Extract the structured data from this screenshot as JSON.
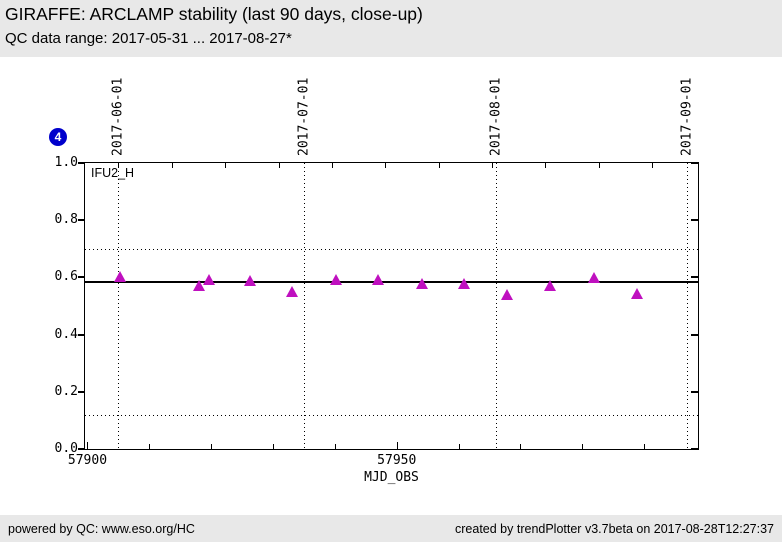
{
  "header": {
    "title": "GIRAFFE: ARCLAMP stability (last 90 days, close-up)",
    "subtitle": "QC data range: 2017-05-31 ... 2017-08-27*"
  },
  "badge": {
    "value": "4",
    "color": "#0000cc"
  },
  "footer": {
    "left": "powered by QC: www.eso.org/HC",
    "right": "created by trendPlotter v3.7beta on 2017-08-28T12:27:37"
  },
  "chart_data": {
    "type": "scatter",
    "series_label": "IFU2_H",
    "marker": "filled-triangle-up",
    "marker_color": "#bf10bf",
    "xlabel": "MJD_OBS",
    "xlim": [
      57899.6,
      57998.7
    ],
    "ylim": [
      0.0,
      1.0
    ],
    "yticks": [
      0.0,
      0.2,
      0.4,
      0.6,
      0.8,
      1.0
    ],
    "ytick_labels": [
      "0.0",
      "0.2",
      "0.4",
      "0.6",
      "0.8",
      "1.0"
    ],
    "xticks_labeled": [
      {
        "mjd": 57900,
        "label": "57900"
      },
      {
        "mjd": 57950,
        "label": "57950"
      }
    ],
    "xticks_minor": [
      57910,
      57920,
      57930,
      57940,
      57960,
      57970,
      57980,
      57990
    ],
    "top_ticks": {
      "start": 57905,
      "interval_days": 8.63
    },
    "date_marks": [
      {
        "label": "2017-06-01",
        "mjd": 57905
      },
      {
        "label": "2017-07-01",
        "mjd": 57935
      },
      {
        "label": "2017-08-01",
        "mjd": 57966
      },
      {
        "label": "2017-09-01",
        "mjd": 57997
      }
    ],
    "center_line": 0.584,
    "threshold_lines": [
      0.7,
      0.12
    ],
    "grid": "dotted vertical lines at month boundaries, dotted horizontal threshold lines",
    "points": [
      {
        "x": 57905.3,
        "y": 0.605
      },
      {
        "x": 57918.0,
        "y": 0.573
      },
      {
        "x": 57919.6,
        "y": 0.594
      },
      {
        "x": 57926.2,
        "y": 0.591
      },
      {
        "x": 57933.0,
        "y": 0.552
      },
      {
        "x": 57940.1,
        "y": 0.594
      },
      {
        "x": 57947.0,
        "y": 0.594
      },
      {
        "x": 57954.0,
        "y": 0.58
      },
      {
        "x": 57960.9,
        "y": 0.58
      },
      {
        "x": 57967.9,
        "y": 0.542
      },
      {
        "x": 57974.8,
        "y": 0.575
      },
      {
        "x": 57981.9,
        "y": 0.601
      },
      {
        "x": 57988.9,
        "y": 0.545
      }
    ]
  }
}
